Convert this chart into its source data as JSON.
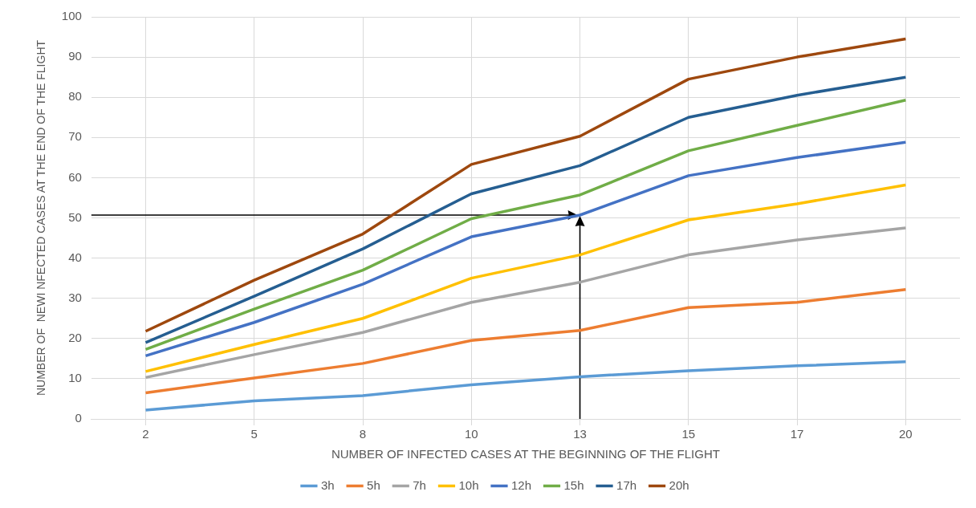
{
  "chart_data": {
    "type": "line",
    "xlabel": "NUMBER OF INFECTED CASES AT THE BEGINNING OF THE FLIGHT",
    "ylabel": "NUMBER OF  NEWI NFECTED CASES AT THE END OF THE FLIGHT",
    "categories": [
      "2",
      "5",
      "8",
      "10",
      "13",
      "15",
      "17",
      "20"
    ],
    "ylim": [
      0,
      100
    ],
    "yticks": [
      0,
      10,
      20,
      30,
      40,
      50,
      60,
      70,
      80,
      90,
      100
    ],
    "grid": true,
    "legend": "bottom",
    "marker": "none",
    "line_style": "solid",
    "series": [
      {
        "name": "3h",
        "color": "#5b9bd5",
        "values": [
          2.2,
          4.5,
          5.8,
          8.5,
          10.5,
          12,
          13.2,
          14.2
        ]
      },
      {
        "name": "5h",
        "color": "#ed7d31",
        "values": [
          6.5,
          10.2,
          13.8,
          19.5,
          22,
          27.7,
          29,
          32.2
        ]
      },
      {
        "name": "7h",
        "color": "#a5a5a5",
        "values": [
          10.3,
          16,
          21.5,
          29,
          34,
          40.8,
          44.5,
          47.5
        ]
      },
      {
        "name": "10h",
        "color": "#ffc000",
        "values": [
          11.8,
          18.5,
          25,
          35,
          40.8,
          49.5,
          53.5,
          58.2
        ]
      },
      {
        "name": "12h",
        "color": "#4472c4",
        "values": [
          15.7,
          24,
          33.5,
          45.3,
          50.7,
          60.5,
          65,
          68.8
        ]
      },
      {
        "name": "15h",
        "color": "#70ad47",
        "values": [
          17.3,
          27.3,
          37,
          49.8,
          55.7,
          66.7,
          73,
          79.3
        ]
      },
      {
        "name": "17h",
        "color": "#255e91",
        "values": [
          19,
          30.5,
          42.3,
          56,
          63,
          75,
          80.5,
          85
        ]
      },
      {
        "name": "20h",
        "color": "#9e480e",
        "values": [
          21.8,
          34.5,
          46,
          63.3,
          70.3,
          84.5,
          90,
          94.5
        ]
      }
    ]
  }
}
